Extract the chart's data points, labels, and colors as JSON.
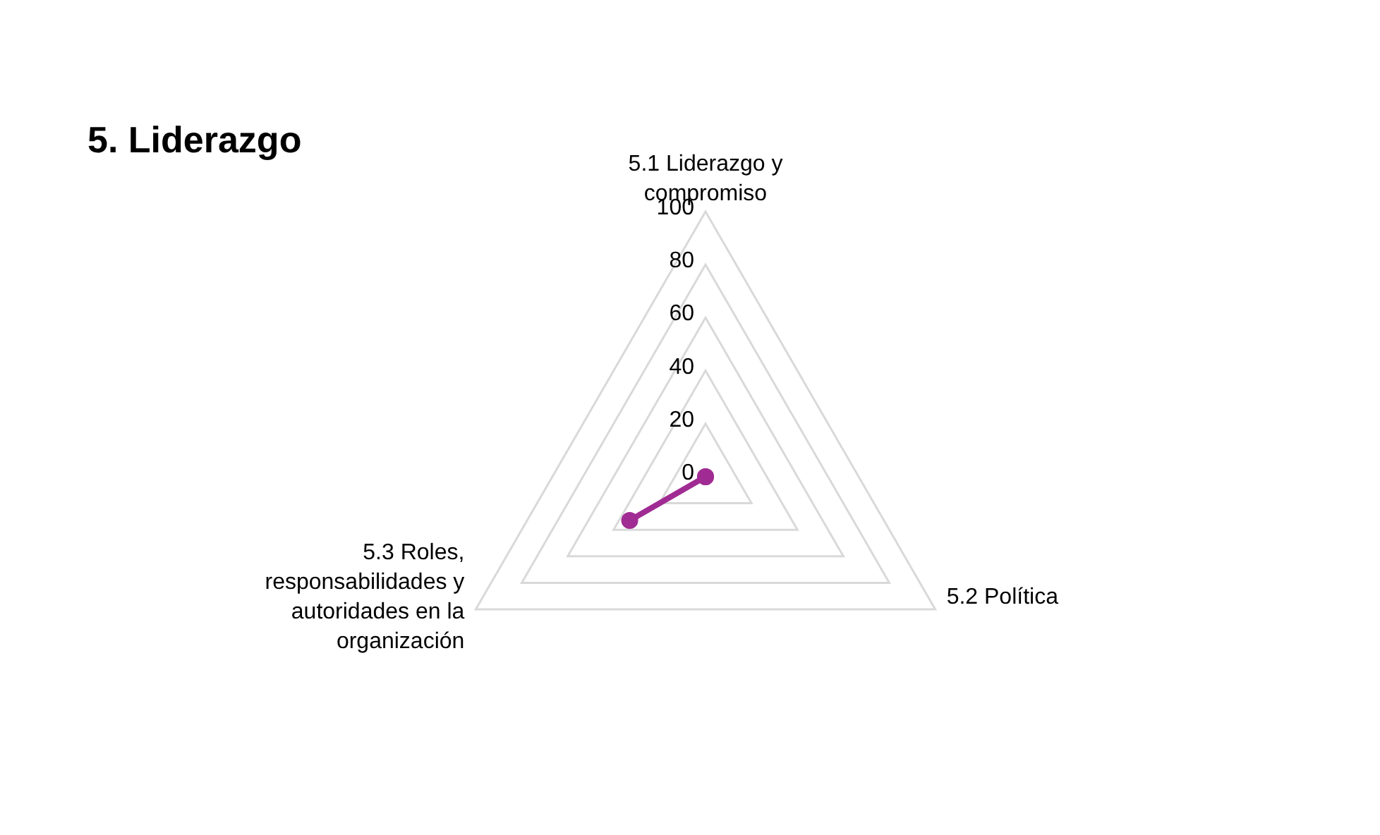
{
  "chart_data": {
    "type": "radar",
    "title": "5. Liderazgo",
    "categories": [
      "5.1 Liderazgo y compromiso",
      "5.2 Política",
      "5.3 Roles, responsabilidades y autoridades en la organización"
    ],
    "series": [
      {
        "color": "#a02b93",
        "values": [
          0,
          0,
          33
        ]
      }
    ],
    "ylim": [
      0,
      100
    ],
    "yticks": [
      0,
      20,
      40,
      60,
      80,
      100
    ],
    "grid": true,
    "marker": "circle"
  }
}
